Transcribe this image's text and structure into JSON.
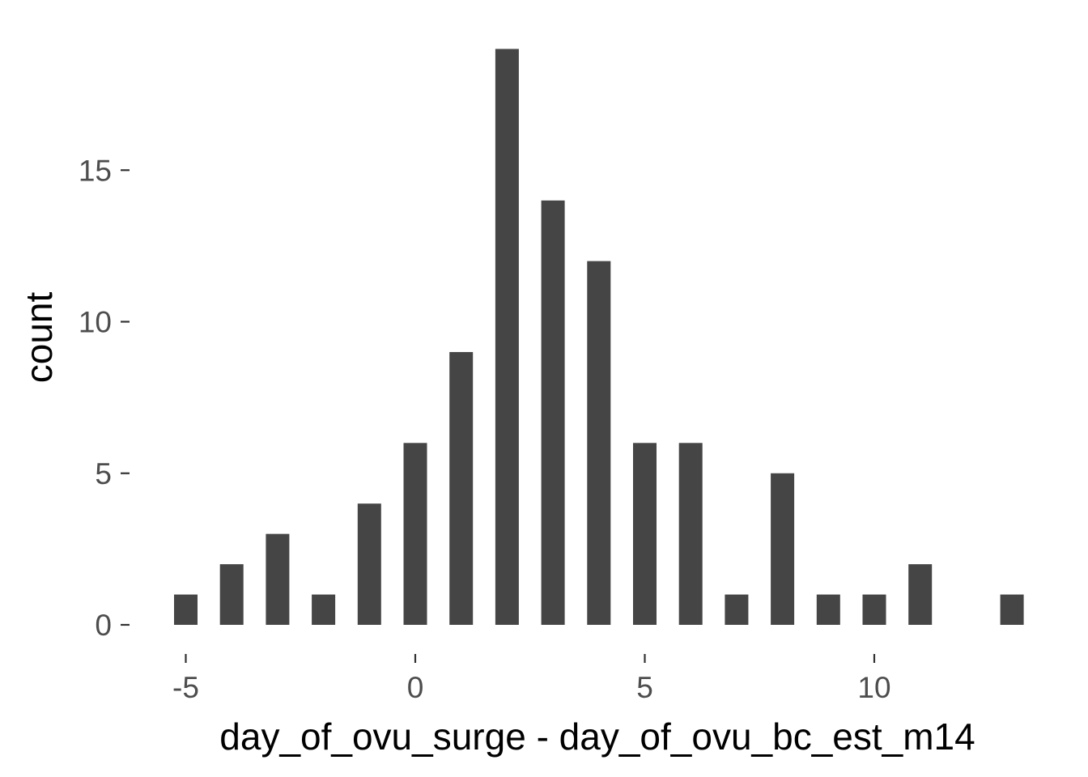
{
  "chart_data": {
    "type": "bar",
    "title": "",
    "xlabel": "day_of_ovu_surge - day_of_ovu_bc_est_m14",
    "ylabel": "count",
    "x": [
      -5,
      -4,
      -3,
      -2,
      -1,
      0,
      1,
      2,
      3,
      4,
      5,
      6,
      7,
      8,
      9,
      10,
      11,
      13
    ],
    "values": [
      1,
      2,
      3,
      1,
      4,
      6,
      9,
      19,
      14,
      12,
      6,
      6,
      1,
      5,
      1,
      1,
      2,
      1
    ],
    "xlim": [
      -5.5,
      13.5
    ],
    "ylim": [
      0,
      19
    ],
    "xticks": [
      -5,
      0,
      5,
      10
    ],
    "xtick_labels": [
      "-5",
      "0",
      "5",
      "10"
    ],
    "yticks": [
      0,
      5,
      10,
      15
    ],
    "ytick_labels": [
      "0",
      "5",
      "10",
      "15"
    ],
    "bar_color": "#454545",
    "background": "#ffffff",
    "grid": false,
    "legend": "none"
  }
}
